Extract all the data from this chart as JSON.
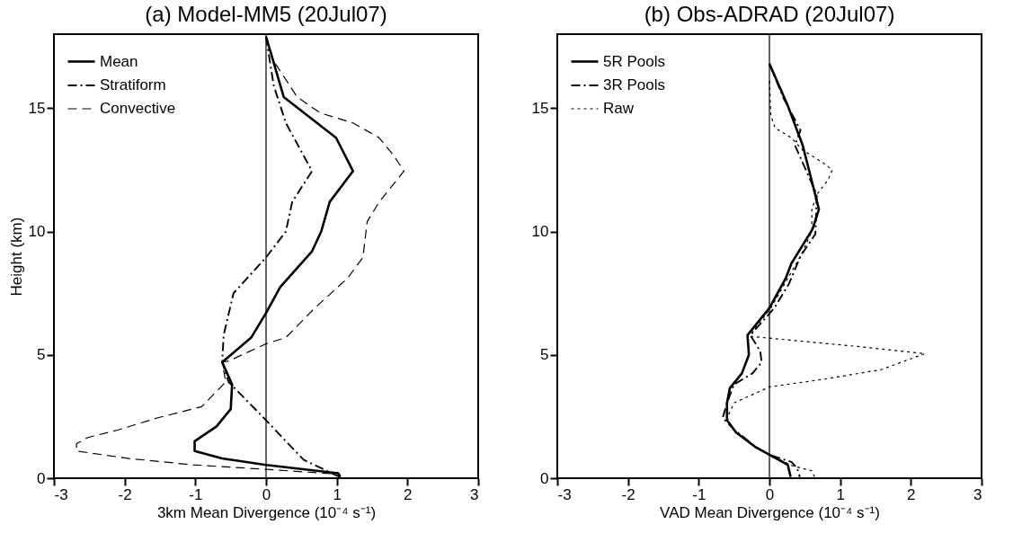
{
  "chart_data": [
    {
      "type": "line",
      "title": "(a) Model-MM5 (20Jul07)",
      "xlabel": "3km Mean Divergence (10⁻⁴ s⁻¹)",
      "ylabel": "Height (km)",
      "xlim": [
        -3,
        3
      ],
      "xticks": [
        -3,
        -2,
        -1,
        0,
        1,
        2,
        3
      ],
      "ylim": [
        0,
        18
      ],
      "yticks": [
        0,
        5,
        10,
        15
      ],
      "grid": false,
      "legend": "top left",
      "ref_lines": [
        {
          "axis": "x",
          "value": 0,
          "color": "#000000",
          "line_style": "solid"
        }
      ],
      "series": [
        {
          "name": "Mean",
          "color": "#000000",
          "line_style": "solid",
          "x": [
            0,
            0.25,
            0.99,
            1.23,
            0.9,
            0.78,
            0.65,
            0.2,
            0,
            -0.21,
            -0.62,
            -0.48,
            -0.5,
            -0.7,
            -1.01,
            -1.01,
            -0.62,
            0,
            1.02,
            1.05
          ],
          "values": [
            17.9,
            15.45,
            13.8,
            12.45,
            11.2,
            10.0,
            9.2,
            7.75,
            6.7,
            5.7,
            4.7,
            3.8,
            2.8,
            2.1,
            1.5,
            1.1,
            0.8,
            0.54,
            0.2,
            0.05
          ]
        },
        {
          "name": "Stratiform",
          "color": "#000000",
          "line_style": "dashdot",
          "x": [
            0,
            0.07,
            0.11,
            0.28,
            0.65,
            0.37,
            0.28,
            0,
            -0.46,
            -0.6,
            -0.62,
            -0.53,
            0,
            0.28,
            0.53,
            0.93,
            1.05
          ],
          "values": [
            17.9,
            16.6,
            15.9,
            14.4,
            12.45,
            11.2,
            10.0,
            8.95,
            7.5,
            5.8,
            4.7,
            3.9,
            2.35,
            1.5,
            0.75,
            0.2,
            0.05
          ]
        },
        {
          "name": "Convective",
          "color": "#000000",
          "line_style": "dashed",
          "x": [
            0,
            0.11,
            0.44,
            0.77,
            1.23,
            1.6,
            1.8,
            1.95,
            1.6,
            1.43,
            1.37,
            1.15,
            0.69,
            0.28,
            0,
            -0.53,
            -0.62,
            -0.57,
            -0.91,
            -1.53,
            -2.1,
            -2.52,
            -2.68,
            -2.68,
            -1.94,
            -1.03,
            0,
            0.93,
            1.05
          ],
          "values": [
            17.9,
            16.9,
            15.45,
            14.8,
            14.4,
            13.8,
            13.1,
            12.45,
            11.2,
            10.4,
            8.95,
            8.1,
            6.9,
            5.7,
            5.45,
            4.75,
            4.7,
            3.9,
            2.9,
            2.45,
            1.95,
            1.65,
            1.4,
            1.1,
            0.8,
            0.54,
            0.36,
            0.18,
            0.05
          ]
        }
      ]
    },
    {
      "type": "line",
      "title": "(b) Obs-ADRAD (20Jul07)",
      "xlabel": "VAD Mean Divergence (10⁻⁴ s⁻¹)",
      "xlim": [
        -3,
        3
      ],
      "xticks": [
        -3,
        -2,
        -1,
        0,
        1,
        2,
        3
      ],
      "ylim": [
        0,
        18
      ],
      "yticks": [
        0,
        5,
        10,
        15
      ],
      "grid": false,
      "legend": "top left",
      "ref_lines": [
        {
          "axis": "x",
          "value": 0,
          "color": "#000000",
          "line_style": "solid"
        }
      ],
      "series": [
        {
          "name": "5R Pools",
          "color": "#000000",
          "line_style": "solid",
          "x": [
            0,
            0.26,
            0.47,
            0.63,
            0.7,
            0.61,
            0.31,
            0.23,
            0,
            -0.31,
            -0.29,
            -0.39,
            -0.56,
            -0.6,
            -0.6,
            -0.47,
            -0.19,
            0,
            0.26,
            0.3
          ],
          "values": [
            16.8,
            15.1,
            13.5,
            11.7,
            10.9,
            10.1,
            8.7,
            8.1,
            6.9,
            5.8,
            5.0,
            4.25,
            3.65,
            3.05,
            2.35,
            1.85,
            1.25,
            0.95,
            0.54,
            0.05
          ]
        },
        {
          "name": "3R Pools",
          "color": "#000000",
          "line_style": "dashdot",
          "x": [
            0,
            0.2,
            0.44,
            0.36,
            0.67,
            0.65,
            0.44,
            0.28,
            0.07,
            -0.27,
            -0.13,
            -0.11,
            -0.24,
            -0.5,
            -0.6,
            -0.66,
            -0.51,
            -0.19,
            0,
            0.31,
            0.39,
            0.43
          ],
          "values": [
            16.8,
            15.4,
            14.1,
            13.5,
            11.5,
            9.9,
            9.0,
            7.9,
            6.9,
            5.8,
            5.15,
            4.7,
            4.25,
            3.8,
            3.05,
            2.45,
            2.0,
            1.25,
            0.95,
            0.66,
            0.42,
            0.05
          ]
        },
        {
          "name": "Raw",
          "color": "#000000",
          "line_style": "dotted",
          "x": [
            0,
            0.02,
            0.08,
            0.31,
            0.47,
            0.75,
            0.89,
            0.83,
            0.67,
            0.6,
            0.6,
            0.44,
            0.26,
            0.02,
            -0.2,
            -0.27,
            1.21,
            2.2,
            1.58,
            0.74,
            0,
            -0.5,
            -0.6,
            -0.51,
            -0.19,
            0,
            0.33,
            0.6,
            0.64
          ],
          "values": [
            16.1,
            14.7,
            14.2,
            13.8,
            13.3,
            12.8,
            12.5,
            12.1,
            11.5,
            10.9,
            10.0,
            9.0,
            8.1,
            6.9,
            6.1,
            5.75,
            5.35,
            5.05,
            4.4,
            4.0,
            3.7,
            3.05,
            2.45,
            2.0,
            1.25,
            0.95,
            0.5,
            0.3,
            0.05
          ]
        }
      ]
    }
  ]
}
